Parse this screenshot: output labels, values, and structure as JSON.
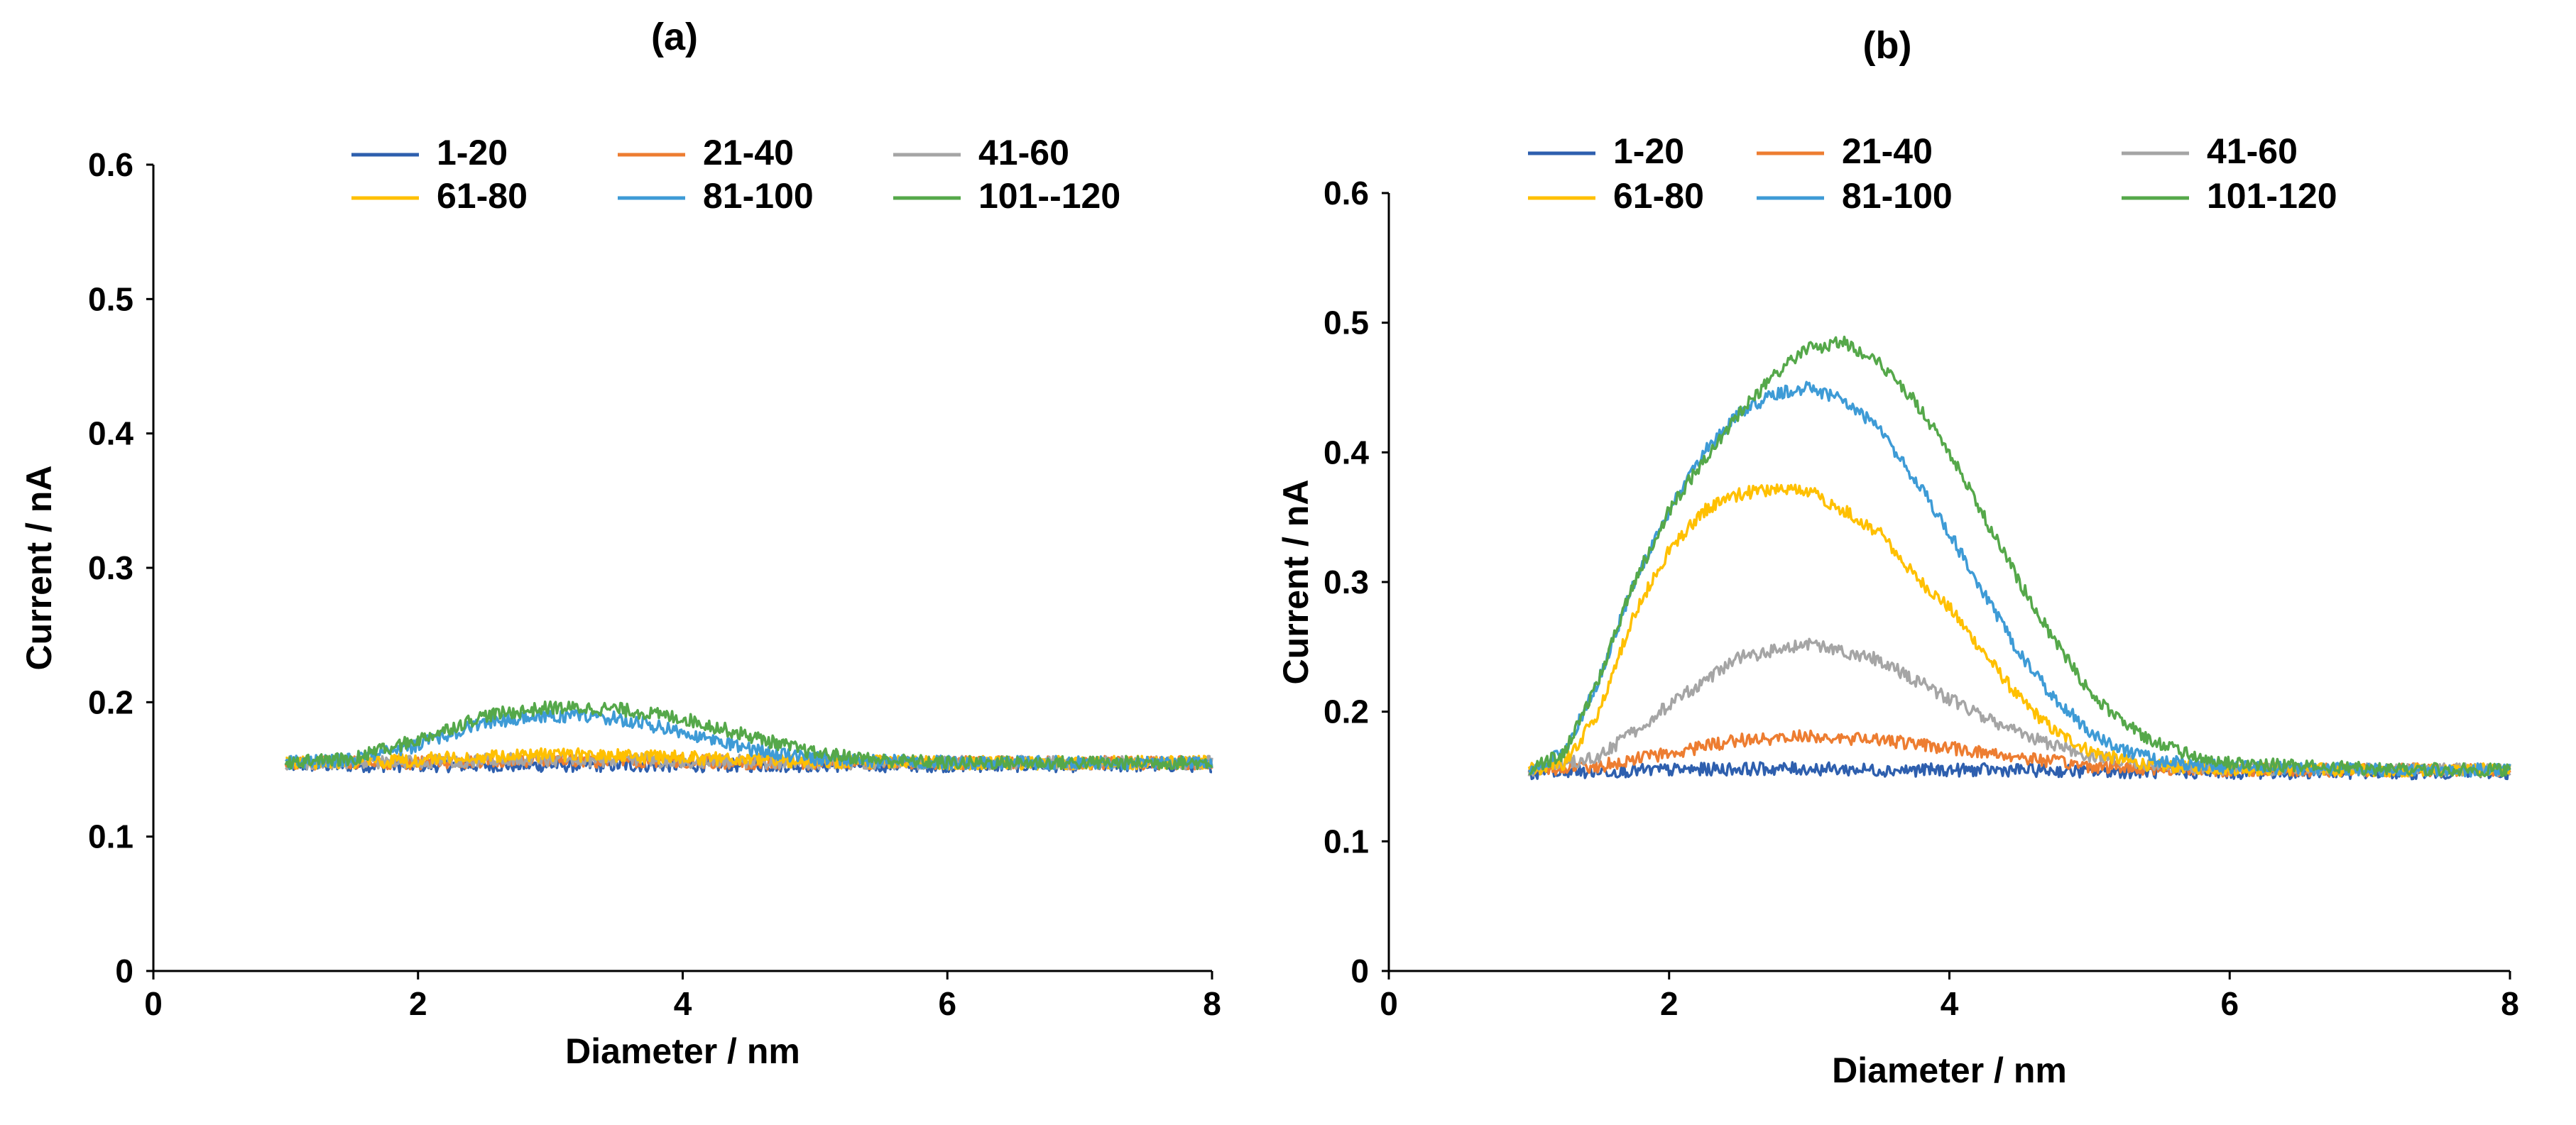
{
  "chart_data": [
    {
      "type": "line",
      "title": "(a)",
      "xlabel": "Diameter / nm",
      "ylabel": "Current / nA",
      "xlim": [
        0,
        8
      ],
      "ylim": [
        0,
        0.6
      ],
      "xticks": [
        0,
        2,
        4,
        6,
        8
      ],
      "yticks": [
        0,
        0.1,
        0.2,
        0.3,
        0.4,
        0.5,
        0.6
      ],
      "grid": false,
      "legend_position": "top",
      "series": [
        {
          "name": "1-20",
          "color": "#2E5FAE",
          "x": [
            1.0,
            1.5,
            2.0,
            2.5,
            3.0,
            3.5,
            4.0,
            4.5,
            5.0,
            6.0,
            7.0,
            8.0
          ],
          "y": [
            0.153,
            0.153,
            0.153,
            0.153,
            0.153,
            0.153,
            0.153,
            0.153,
            0.153,
            0.153,
            0.153,
            0.153
          ]
        },
        {
          "name": "21-40",
          "color": "#ED7D31",
          "x": [
            1.0,
            1.5,
            2.0,
            2.5,
            3.0,
            3.5,
            4.0,
            4.5,
            5.0,
            6.0,
            7.0,
            8.0
          ],
          "y": [
            0.155,
            0.155,
            0.155,
            0.156,
            0.157,
            0.156,
            0.156,
            0.155,
            0.155,
            0.155,
            0.155,
            0.155
          ]
        },
        {
          "name": "41-60",
          "color": "#A5A5A5",
          "x": [
            1.0,
            1.5,
            2.0,
            2.5,
            3.0,
            3.5,
            4.0,
            4.5,
            5.0,
            6.0,
            7.0,
            8.0
          ],
          "y": [
            0.155,
            0.155,
            0.156,
            0.157,
            0.157,
            0.157,
            0.156,
            0.156,
            0.155,
            0.155,
            0.155,
            0.155
          ]
        },
        {
          "name": "61-80",
          "color": "#FFC000",
          "x": [
            1.0,
            1.5,
            2.0,
            2.5,
            3.0,
            3.5,
            4.0,
            4.5,
            5.0,
            6.0,
            7.0,
            8.0
          ],
          "y": [
            0.155,
            0.155,
            0.157,
            0.16,
            0.161,
            0.16,
            0.159,
            0.157,
            0.156,
            0.155,
            0.155,
            0.155
          ]
        },
        {
          "name": "81-100",
          "color": "#3E9BD6",
          "x": [
            1.0,
            1.5,
            2.0,
            2.5,
            3.0,
            3.5,
            4.0,
            4.5,
            5.0,
            5.5,
            6.0,
            7.0,
            8.0
          ],
          "y": [
            0.155,
            0.157,
            0.168,
            0.185,
            0.19,
            0.188,
            0.178,
            0.165,
            0.158,
            0.156,
            0.155,
            0.155,
            0.155
          ]
        },
        {
          "name": "101--120",
          "color": "#55A84A",
          "x": [
            1.0,
            1.5,
            2.0,
            2.5,
            3.0,
            3.5,
            4.0,
            4.5,
            5.0,
            5.5,
            6.0,
            7.0,
            8.0
          ],
          "y": [
            0.155,
            0.158,
            0.172,
            0.19,
            0.196,
            0.195,
            0.188,
            0.175,
            0.162,
            0.157,
            0.155,
            0.155,
            0.155
          ]
        }
      ]
    },
    {
      "type": "line",
      "title": "(b)",
      "xlabel": "Diameter / nm",
      "ylabel": "Current / nA",
      "xlim": [
        0,
        8
      ],
      "ylim": [
        0,
        0.6
      ],
      "xticks": [
        0,
        2,
        4,
        6,
        8
      ],
      "yticks": [
        0,
        0.1,
        0.2,
        0.3,
        0.4,
        0.5,
        0.6
      ],
      "grid": false,
      "legend_position": "top",
      "series": [
        {
          "name": "1-20",
          "color": "#2E5FAE",
          "x": [
            1.0,
            1.5,
            2.0,
            2.5,
            3.0,
            3.5,
            4.0,
            4.5,
            5.0,
            6.0,
            7.0,
            8.0
          ],
          "y": [
            0.153,
            0.154,
            0.155,
            0.156,
            0.156,
            0.155,
            0.155,
            0.155,
            0.154,
            0.153,
            0.153,
            0.153
          ]
        },
        {
          "name": "21-40",
          "color": "#ED7D31",
          "x": [
            1.0,
            1.5,
            2.0,
            2.5,
            3.0,
            3.5,
            4.0,
            4.5,
            5.0,
            5.5,
            6.0,
            7.0,
            8.0
          ],
          "y": [
            0.155,
            0.158,
            0.168,
            0.178,
            0.181,
            0.178,
            0.172,
            0.165,
            0.158,
            0.156,
            0.155,
            0.155,
            0.155
          ]
        },
        {
          "name": "41-60",
          "color": "#A5A5A5",
          "x": [
            1.0,
            1.5,
            2.0,
            2.5,
            3.0,
            3.5,
            4.0,
            4.5,
            5.0,
            5.5,
            6.0,
            7.0,
            8.0
          ],
          "y": [
            0.155,
            0.165,
            0.205,
            0.242,
            0.252,
            0.24,
            0.21,
            0.183,
            0.166,
            0.158,
            0.156,
            0.155,
            0.155
          ]
        },
        {
          "name": "61-80",
          "color": "#FFC000",
          "x": [
            1.0,
            1.25,
            1.5,
            1.75,
            2.0,
            2.25,
            2.5,
            2.75,
            3.0,
            3.25,
            3.5,
            3.75,
            4.0,
            4.25,
            4.5,
            4.75,
            5.0,
            5.25,
            5.5,
            6.0,
            7.0,
            8.0
          ],
          "y": [
            0.155,
            0.16,
            0.2,
            0.275,
            0.325,
            0.355,
            0.368,
            0.372,
            0.37,
            0.355,
            0.338,
            0.305,
            0.28,
            0.245,
            0.21,
            0.185,
            0.17,
            0.162,
            0.158,
            0.156,
            0.155,
            0.155
          ]
        },
        {
          "name": "81-100",
          "color": "#3E9BD6",
          "x": [
            1.0,
            1.25,
            1.5,
            1.75,
            2.0,
            2.25,
            2.5,
            2.75,
            3.0,
            3.25,
            3.5,
            3.75,
            4.0,
            4.25,
            4.5,
            4.75,
            5.0,
            5.25,
            5.5,
            6.0,
            7.0,
            8.0
          ],
          "y": [
            0.155,
            0.168,
            0.225,
            0.3,
            0.355,
            0.4,
            0.43,
            0.445,
            0.45,
            0.44,
            0.418,
            0.38,
            0.338,
            0.29,
            0.245,
            0.21,
            0.185,
            0.17,
            0.162,
            0.157,
            0.155,
            0.155
          ]
        },
        {
          "name": "101-120",
          "color": "#55A84A",
          "x": [
            1.0,
            1.25,
            1.5,
            1.75,
            2.0,
            2.25,
            2.5,
            2.75,
            3.0,
            3.25,
            3.5,
            3.75,
            4.0,
            4.25,
            4.5,
            4.75,
            5.0,
            5.25,
            5.5,
            5.75,
            6.0,
            7.0,
            8.0
          ],
          "y": [
            0.155,
            0.168,
            0.225,
            0.3,
            0.355,
            0.395,
            0.43,
            0.46,
            0.48,
            0.485,
            0.47,
            0.44,
            0.4,
            0.35,
            0.3,
            0.255,
            0.215,
            0.19,
            0.175,
            0.165,
            0.16,
            0.156,
            0.155
          ]
        }
      ]
    }
  ]
}
